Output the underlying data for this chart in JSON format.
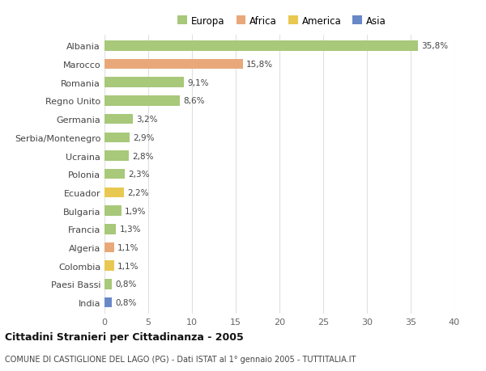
{
  "categories": [
    "Albania",
    "Marocco",
    "Romania",
    "Regno Unito",
    "Germania",
    "Serbia/Montenegro",
    "Ucraina",
    "Polonia",
    "Ecuador",
    "Bulgaria",
    "Francia",
    "Algeria",
    "Colombia",
    "Paesi Bassi",
    "India"
  ],
  "values": [
    35.8,
    15.8,
    9.1,
    8.6,
    3.2,
    2.9,
    2.8,
    2.3,
    2.2,
    1.9,
    1.3,
    1.1,
    1.1,
    0.8,
    0.8
  ],
  "labels": [
    "35,8%",
    "15,8%",
    "9,1%",
    "8,6%",
    "3,2%",
    "2,9%",
    "2,8%",
    "2,3%",
    "2,2%",
    "1,9%",
    "1,3%",
    "1,1%",
    "1,1%",
    "0,8%",
    "0,8%"
  ],
  "continents": [
    "Europa",
    "Africa",
    "Europa",
    "Europa",
    "Europa",
    "Europa",
    "Europa",
    "Europa",
    "America",
    "Europa",
    "Europa",
    "Africa",
    "America",
    "Europa",
    "Asia"
  ],
  "continent_colors": {
    "Europa": "#a8c87a",
    "Africa": "#e8a87a",
    "America": "#e8c850",
    "Asia": "#6888c8"
  },
  "legend_entries": [
    "Europa",
    "Africa",
    "America",
    "Asia"
  ],
  "legend_colors": [
    "#a8c87a",
    "#e8a87a",
    "#e8c850",
    "#6888c8"
  ],
  "title": "Cittadini Stranieri per Cittadinanza - 2005",
  "subtitle": "COMUNE DI CASTIGLIONE DEL LAGO (PG) - Dati ISTAT al 1° gennaio 2005 - TUTTITALIA.IT",
  "xlim": [
    0,
    40
  ],
  "xticks": [
    0,
    5,
    10,
    15,
    20,
    25,
    30,
    35,
    40
  ],
  "bg_color": "#ffffff",
  "grid_color": "#e0e0e0",
  "bar_height": 0.55
}
